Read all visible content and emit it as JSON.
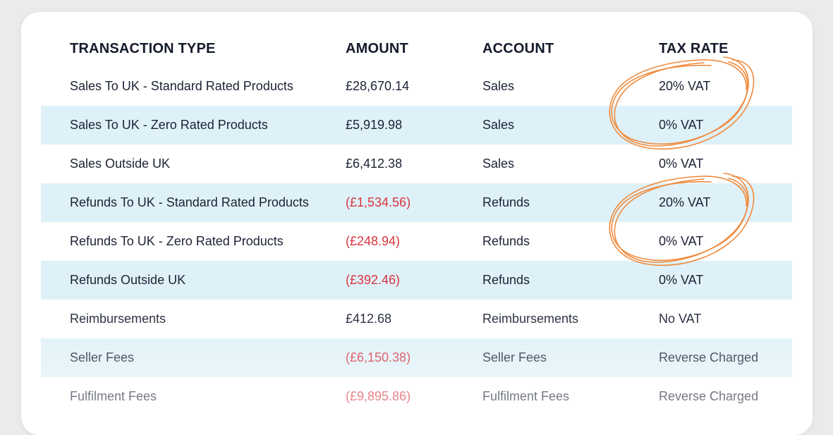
{
  "headers": {
    "type": "TRANSACTION TYPE",
    "amount": "AMOUNT",
    "account": "ACCOUNT",
    "tax": "TAX RATE"
  },
  "rows": [
    {
      "type": "Sales To UK - Standard Rated Products",
      "amount": "£28,670.14",
      "account": "Sales",
      "tax": "20% VAT"
    },
    {
      "type": "Sales To UK - Zero Rated Products",
      "amount": "£5,919.98",
      "account": "Sales",
      "tax": "0% VAT"
    },
    {
      "type": "Sales Outside UK",
      "amount": "£6,412.38",
      "account": "Sales",
      "tax": "0% VAT"
    },
    {
      "type": "Refunds To UK - Standard Rated Products",
      "amount": "(£1,534.56)",
      "account": "Refunds",
      "tax": "20% VAT"
    },
    {
      "type": "Refunds To UK - Zero Rated Products",
      "amount": "(£248.94)",
      "account": "Refunds",
      "tax": "0% VAT"
    },
    {
      "type": "Refunds Outside UK",
      "amount": "(£392.46)",
      "account": "Refunds",
      "tax": "0% VAT"
    },
    {
      "type": "Reimbursements",
      "amount": "£412.68",
      "account": "Reimbursements",
      "tax": "No VAT"
    },
    {
      "type": "Seller Fees",
      "amount": "(£6,150.38)",
      "account": "Seller Fees",
      "tax": "Reverse Charged"
    },
    {
      "type": "Fulfilment Fees",
      "amount": "(£9,895.86)",
      "account": "Fulfilment Fees",
      "tax": "Reverse Charged"
    }
  ],
  "colors": {
    "negative": "#d8353f",
    "row_alt": "#dff1f8",
    "annotation": "#f08a3c"
  }
}
